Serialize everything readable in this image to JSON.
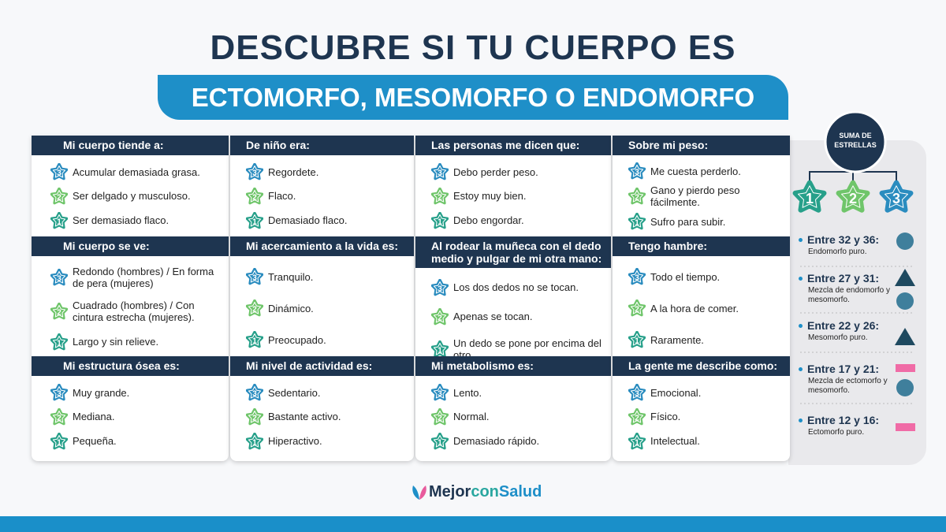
{
  "header": {
    "title": "DESCUBRE SI TU CUERPO ES",
    "subtitle": "ECTOMORFO, MESOMORFO O ENDOMORFO"
  },
  "questions": [
    {
      "title": "Mi cuerpo tiende a:",
      "options": [
        {
          "stars": 3,
          "text": "Acumular demasiada grasa."
        },
        {
          "stars": 2,
          "text": "Ser delgado y musculoso."
        },
        {
          "stars": 1,
          "text": "Ser demasiado flaco."
        }
      ]
    },
    {
      "title": "De niño era:",
      "options": [
        {
          "stars": 3,
          "text": "Regordete."
        },
        {
          "stars": 2,
          "text": "Flaco."
        },
        {
          "stars": 1,
          "text": "Demasiado flaco."
        }
      ]
    },
    {
      "title": "Las personas me dicen que:",
      "options": [
        {
          "stars": 3,
          "text": "Debo perder peso."
        },
        {
          "stars": 2,
          "text": "Estoy muy bien."
        },
        {
          "stars": 1,
          "text": "Debo engordar."
        }
      ]
    },
    {
      "title": "Sobre mi peso:",
      "options": [
        {
          "stars": 3,
          "text": "Me cuesta perderlo."
        },
        {
          "stars": 2,
          "text": "Gano y pierdo peso fácilmente."
        },
        {
          "stars": 1,
          "text": "Sufro para subir."
        }
      ]
    },
    {
      "title": "Mi cuerpo se ve:",
      "options": [
        {
          "stars": 3,
          "text": "Redondo (hombres) / En forma de pera (mujeres)"
        },
        {
          "stars": 2,
          "text": "Cuadrado (hombres) / Con cintura estrecha (mujeres)."
        },
        {
          "stars": 1,
          "text": "Largo y sin relieve."
        }
      ]
    },
    {
      "title": "Mi acercamiento a la vida es:",
      "options": [
        {
          "stars": 3,
          "text": "Tranquilo."
        },
        {
          "stars": 2,
          "text": "Dinámico."
        },
        {
          "stars": 1,
          "text": "Preocupado."
        }
      ]
    },
    {
      "title": "Al rodear la muñeca con el dedo medio y pulgar de mi otra mano:",
      "options": [
        {
          "stars": 3,
          "text": "Los dos dedos no se tocan."
        },
        {
          "stars": 2,
          "text": "Apenas se tocan."
        },
        {
          "stars": 1,
          "text": "Un dedo se pone por encima del otro."
        }
      ]
    },
    {
      "title": "Tengo hambre:",
      "options": [
        {
          "stars": 3,
          "text": "Todo el tiempo."
        },
        {
          "stars": 2,
          "text": "A la hora de comer."
        },
        {
          "stars": 1,
          "text": "Raramente."
        }
      ]
    },
    {
      "title": "Mi estructura ósea es:",
      "options": [
        {
          "stars": 3,
          "text": "Muy grande."
        },
        {
          "stars": 2,
          "text": "Mediana."
        },
        {
          "stars": 1,
          "text": "Pequeña."
        }
      ]
    },
    {
      "title": "Mi nivel de actividad es:",
      "options": [
        {
          "stars": 3,
          "text": "Sedentario."
        },
        {
          "stars": 2,
          "text": "Bastante activo."
        },
        {
          "stars": 1,
          "text": "Hiperactivo."
        }
      ]
    },
    {
      "title": "Mi metabolismo es:",
      "options": [
        {
          "stars": 3,
          "text": "Lento."
        },
        {
          "stars": 2,
          "text": "Normal."
        },
        {
          "stars": 1,
          "text": "Demasiado rápido."
        }
      ]
    },
    {
      "title": "La gente me describe como:",
      "options": [
        {
          "stars": 3,
          "text": "Emocional."
        },
        {
          "stars": 2,
          "text": "Físico."
        },
        {
          "stars": 1,
          "text": "Intelectual."
        }
      ]
    }
  ],
  "scoring": {
    "title": "SUMA DE ESTRELLAS",
    "stars": [
      1,
      2,
      3
    ],
    "ranges": [
      {
        "label": "Entre 32 y 36:",
        "result": "Endomorfo puro."
      },
      {
        "label": "Entre 27 y 31:",
        "result": "Mezcla de endomorfo y mesomorfo."
      },
      {
        "label": "Entre 22 y 26:",
        "result": "Mesomorfo puro."
      },
      {
        "label": "Entre 17 y 21:",
        "result": "Mezcla de ectomorfo y mesomorfo."
      },
      {
        "label": "Entre 12 y 16:",
        "result": "Ectomorfo puro."
      }
    ]
  },
  "footer": {
    "brand": [
      "Mejor",
      "con",
      "Salud"
    ]
  }
}
